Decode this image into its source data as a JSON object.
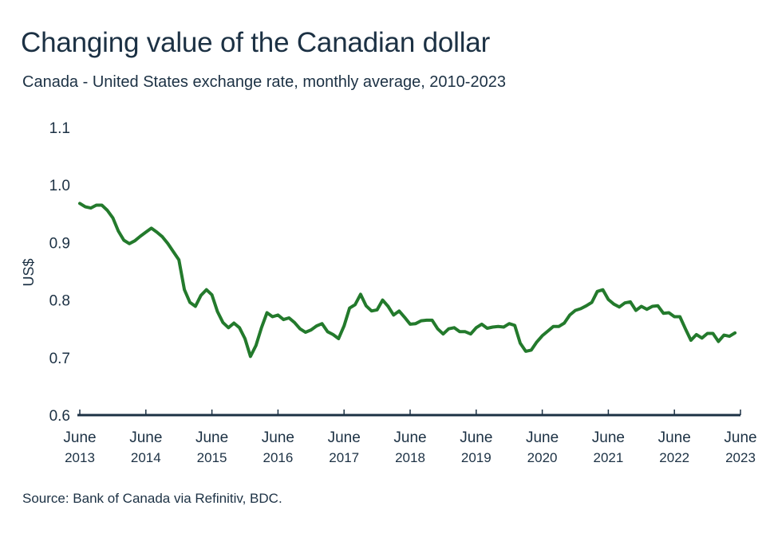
{
  "chart_data": {
    "type": "line",
    "title": "Changing value of the Canadian dollar",
    "subtitle": "Canada - United States exchange rate, monthly average, 2010-2023",
    "source": "Source: Bank of Canada via Refinitiv, BDC.",
    "ylabel": "US$",
    "xlabel": "",
    "ylim": [
      0.6,
      1.1
    ],
    "yticks": [
      "0.6",
      "0.7",
      "0.8",
      "0.9",
      "1.0",
      "1.1"
    ],
    "xlim": [
      "2013-06",
      "2023-06"
    ],
    "xticks": [
      {
        "date": "2013-06",
        "label": [
          "June",
          "2013"
        ]
      },
      {
        "date": "2014-06",
        "label": [
          "June",
          "2014"
        ]
      },
      {
        "date": "2015-06",
        "label": [
          "June",
          "2015"
        ]
      },
      {
        "date": "2016-06",
        "label": [
          "June",
          "2016"
        ]
      },
      {
        "date": "2017-06",
        "label": [
          "June",
          "2017"
        ]
      },
      {
        "date": "2018-06",
        "label": [
          "June",
          "2018"
        ]
      },
      {
        "date": "2019-06",
        "label": [
          "June",
          "2019"
        ]
      },
      {
        "date": "2020-06",
        "label": [
          "June",
          "2020"
        ]
      },
      {
        "date": "2021-06",
        "label": [
          "June",
          "2021"
        ]
      },
      {
        "date": "2022-06",
        "label": [
          "June",
          "2022"
        ]
      },
      {
        "date": "2023-06",
        "label": [
          "June",
          "2023"
        ]
      }
    ],
    "grid": false,
    "legend": "none",
    "line_color": "#237a2c",
    "axis_color": "#1c3144",
    "series": [
      {
        "start": "2013-06",
        "frequency": "monthly",
        "values": [
          0.968,
          0.962,
          0.96,
          0.965,
          0.965,
          0.956,
          0.943,
          0.92,
          0.904,
          0.898,
          0.903,
          0.911,
          0.918,
          0.925,
          0.918,
          0.91,
          0.898,
          0.884,
          0.87,
          0.818,
          0.796,
          0.789,
          0.808,
          0.818,
          0.809,
          0.78,
          0.761,
          0.752,
          0.76,
          0.752,
          0.733,
          0.702,
          0.721,
          0.752,
          0.778,
          0.771,
          0.774,
          0.766,
          0.769,
          0.761,
          0.75,
          0.744,
          0.748,
          0.755,
          0.759,
          0.745,
          0.74,
          0.733,
          0.755,
          0.786,
          0.792,
          0.81,
          0.79,
          0.781,
          0.783,
          0.8,
          0.789,
          0.774,
          0.781,
          0.77,
          0.758,
          0.759,
          0.764,
          0.765,
          0.765,
          0.75,
          0.741,
          0.75,
          0.752,
          0.745,
          0.745,
          0.741,
          0.752,
          0.758,
          0.751,
          0.753,
          0.754,
          0.753,
          0.759,
          0.756,
          0.725,
          0.711,
          0.713,
          0.727,
          0.738,
          0.746,
          0.754,
          0.754,
          0.76,
          0.774,
          0.782,
          0.785,
          0.79,
          0.796,
          0.815,
          0.818,
          0.801,
          0.793,
          0.788,
          0.795,
          0.797,
          0.782,
          0.789,
          0.784,
          0.789,
          0.79,
          0.777,
          0.778,
          0.771,
          0.771,
          0.75,
          0.73,
          0.74,
          0.734,
          0.742,
          0.742,
          0.728,
          0.739,
          0.737,
          0.743
        ]
      }
    ]
  }
}
